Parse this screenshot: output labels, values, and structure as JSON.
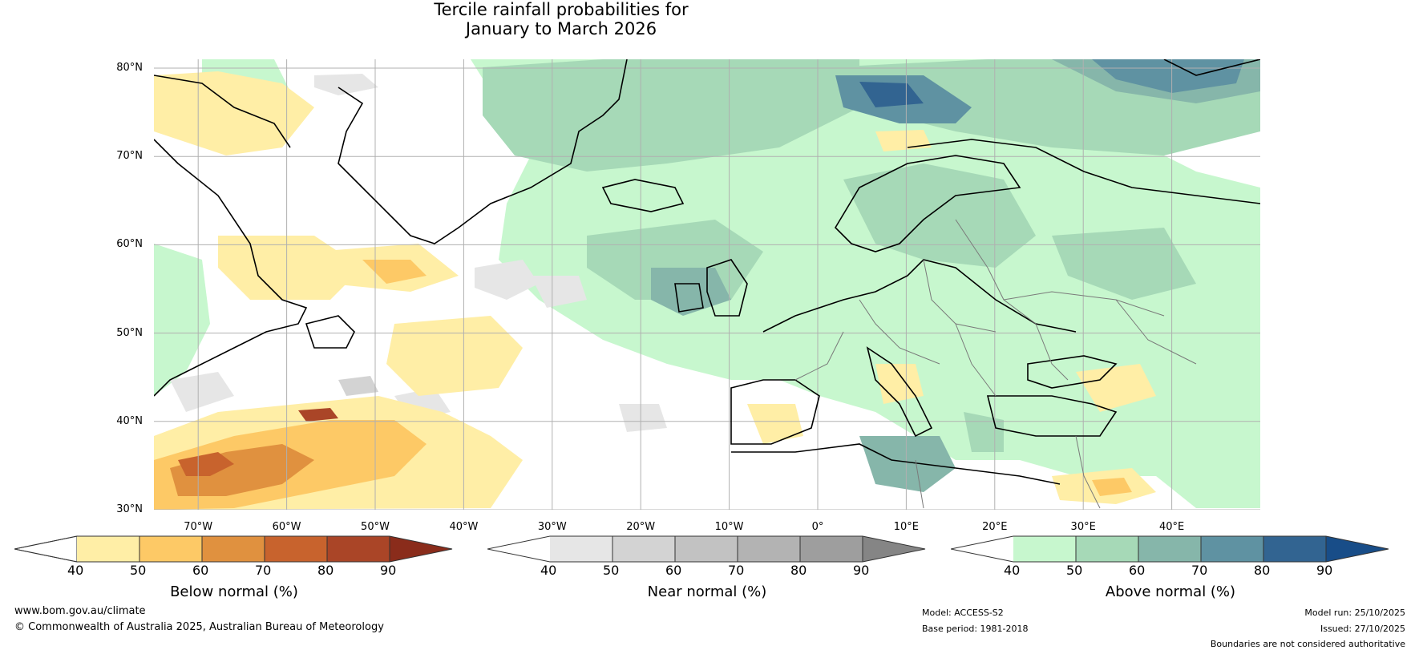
{
  "title": {
    "line1": "Tercile rainfall probabilities for",
    "line2": "January to March 2026"
  },
  "map": {
    "lat_labels": [
      "80°N",
      "70°N",
      "60°N",
      "50°N",
      "40°N",
      "30°N"
    ],
    "lon_labels": [
      "70°W",
      "60°W",
      "50°W",
      "40°W",
      "30°W",
      "20°W",
      "10°W",
      "0°",
      "10°E",
      "20°E",
      "30°E",
      "40°E"
    ],
    "colors": {
      "below": [
        "#ffeea6",
        "#fdc966",
        "#e0913f",
        "#c8632d",
        "#aa4527",
        "#8a2c1b"
      ],
      "near": [
        "#e6e6e6",
        "#d3d3d3",
        "#c2c2c2",
        "#b3b3b3",
        "#9e9e9e",
        "#858585"
      ],
      "above": [
        "#c7f7ce",
        "#a6d9b7",
        "#86b6aa",
        "#5f92a2",
        "#326491",
        "#184d88"
      ],
      "coast": "#000000",
      "border": "#7a7a7a",
      "grid": "#b0b0b0"
    }
  },
  "colorbars": [
    {
      "id": "below",
      "ticks": [
        "40",
        "50",
        "60",
        "70",
        "80",
        "90"
      ],
      "label": "Below normal (%)"
    },
    {
      "id": "near",
      "ticks": [
        "40",
        "50",
        "60",
        "70",
        "80",
        "90"
      ],
      "label": "Near normal (%)"
    },
    {
      "id": "above",
      "ticks": [
        "40",
        "50",
        "60",
        "70",
        "80",
        "90"
      ],
      "label": "Above normal (%)"
    }
  ],
  "footer": {
    "website": "www.bom.gov.au/climate",
    "copyright": "© Commonwealth of Australia 2025, Australian Bureau of Meteorology",
    "model": "Model: ACCESS-S2",
    "base_period": "Base period: 1981-2018",
    "model_run": "Model run: 25/10/2025",
    "issued": "Issued: 27/10/2025",
    "disclaimer": "Boundaries are not considered authoritative"
  }
}
